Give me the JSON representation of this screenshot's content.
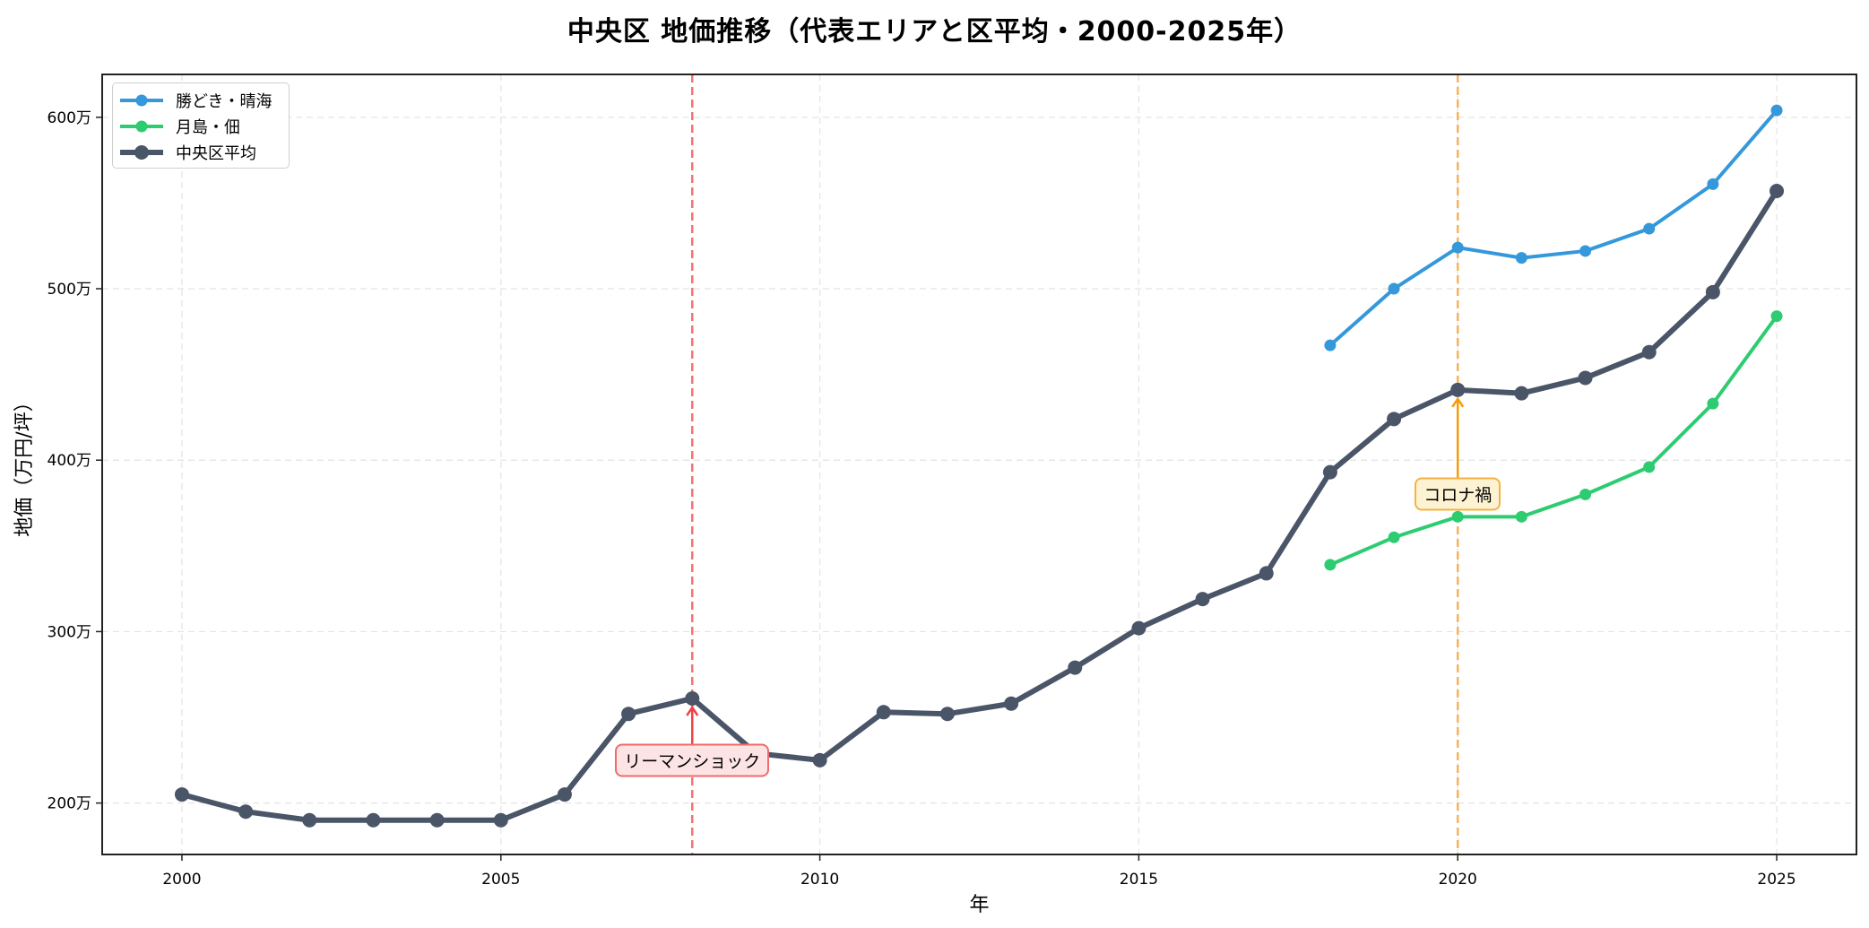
{
  "chart_data": {
    "type": "line",
    "title": "中央区 地価推移（代表エリアと区平均・2000-2025年）",
    "xlabel": "年",
    "ylabel": "地価（万円/坪）",
    "xlim": [
      1998.75,
      2026.25
    ],
    "ylim": [
      170,
      625
    ],
    "xticks": [
      2000,
      2005,
      2010,
      2015,
      2020,
      2025
    ],
    "xtick_labels": [
      "2000",
      "2005",
      "2010",
      "2015",
      "2020",
      "2025"
    ],
    "yticks": [
      200,
      300,
      400,
      500,
      600
    ],
    "ytick_labels": [
      "200万",
      "300万",
      "400万",
      "500万",
      "600万"
    ],
    "grid": true,
    "legend_position": "upper left",
    "series": [
      {
        "name": "勝どき・晴海",
        "color": "#3498db",
        "line_width": 4,
        "marker_radius": 6.5,
        "x": [
          2018,
          2019,
          2020,
          2021,
          2022,
          2023,
          2024,
          2025
        ],
        "values": [
          467,
          500,
          524,
          518,
          522,
          535,
          561,
          604
        ]
      },
      {
        "name": "月島・佃",
        "color": "#2ecc71",
        "line_width": 4,
        "marker_radius": 6.5,
        "x": [
          2018,
          2019,
          2020,
          2021,
          2022,
          2023,
          2024,
          2025
        ],
        "values": [
          339,
          355,
          367,
          367,
          380,
          396,
          433,
          484
        ]
      },
      {
        "name": "中央区平均",
        "color": "#4a5568",
        "line_width": 6,
        "marker_radius": 8,
        "x": [
          2000,
          2001,
          2002,
          2003,
          2004,
          2005,
          2006,
          2007,
          2008,
          2009,
          2010,
          2011,
          2012,
          2013,
          2014,
          2015,
          2016,
          2017,
          2018,
          2019,
          2020,
          2021,
          2022,
          2023,
          2024,
          2025
        ],
        "values": [
          205,
          195,
          190,
          190,
          190,
          190,
          205,
          252,
          261,
          229,
          225,
          253,
          252,
          258,
          279,
          302,
          319,
          334,
          393,
          424,
          441,
          439,
          448,
          463,
          498,
          557
        ]
      }
    ],
    "vlines": [
      {
        "x": 2008,
        "color": "#f87171",
        "style": "dashed"
      },
      {
        "x": 2020,
        "color": "#f6b35a",
        "style": "dashed"
      }
    ],
    "annotations": [
      {
        "text": "リーマンショック",
        "x": 2008,
        "y": 261,
        "text_y": 225,
        "arrow_color": "#ef4444",
        "box_bg": "#fde4e4",
        "box_border": "#f06b6b"
      },
      {
        "text": "コロナ禍",
        "x": 2020,
        "y": 441,
        "text_y": 380,
        "arrow_color": "#f59e0b",
        "box_bg": "#fdf3d3",
        "box_border": "#f5b142"
      }
    ]
  }
}
